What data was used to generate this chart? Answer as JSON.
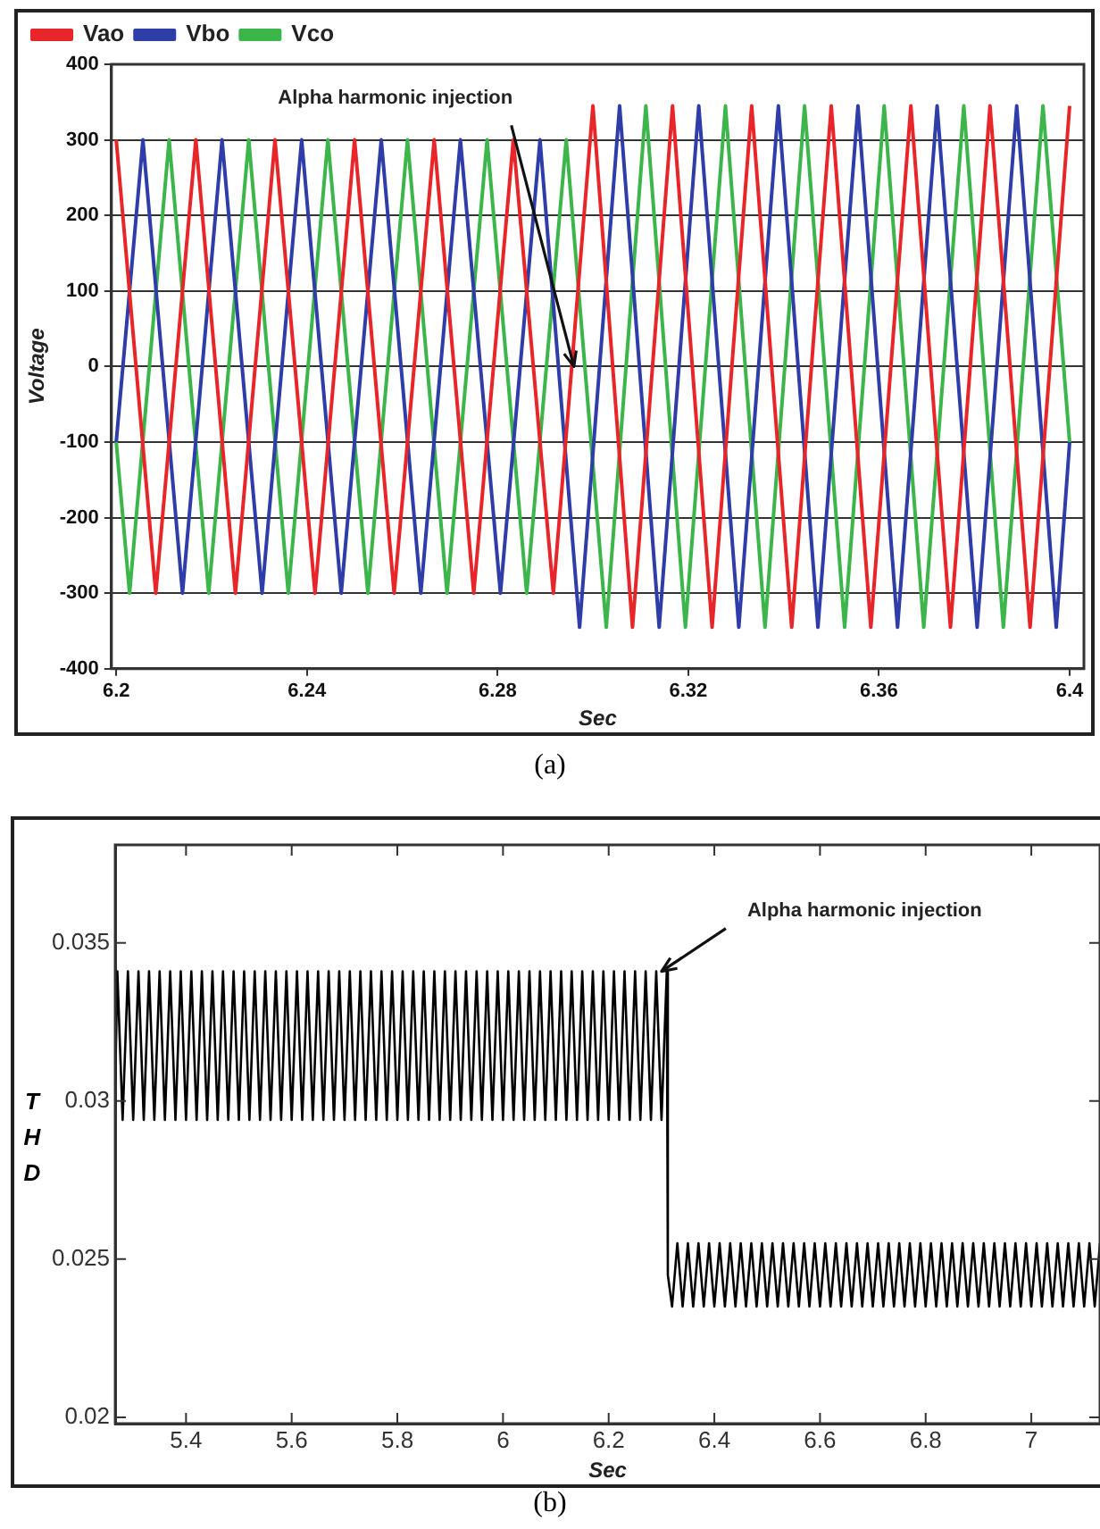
{
  "chart_data": [
    {
      "type": "line",
      "xlabel": "Sec",
      "ylabel": "Voltage",
      "xlim": [
        6.199,
        6.403
      ],
      "xticks": [
        6.2,
        6.24,
        6.28,
        6.32,
        6.36,
        6.4
      ],
      "ylim": [
        -400,
        400
      ],
      "yticks": [
        -400,
        -300,
        -200,
        -100,
        0,
        100,
        200,
        300,
        400
      ],
      "grid": "y",
      "legend": "top left",
      "annotations": [
        {
          "text": "Alpha harmonic injection",
          "x": 6.296,
          "y": 0
        },
        "(a)"
      ],
      "series": [
        {
          "name": "Vao",
          "color": "#e8262a",
          "x": [
            6.2,
            6.2083,
            6.2167,
            6.225,
            6.2333,
            6.2417,
            6.25,
            6.2583,
            6.2667,
            6.275,
            6.2833,
            6.2917,
            6.3,
            6.3083,
            6.3167,
            6.325,
            6.3333,
            6.3417,
            6.35,
            6.3583,
            6.3667,
            6.375,
            6.3833,
            6.3917,
            6.4
          ],
          "values": [
            300,
            -300,
            300,
            -300,
            300,
            -300,
            300,
            -300,
            300,
            -300,
            300,
            -300,
            345,
            -345,
            345,
            -345,
            345,
            -345,
            345,
            -345,
            345,
            -345,
            345,
            -345,
            345
          ]
        },
        {
          "name": "Vbo",
          "color": "#2e3da8",
          "x": [
            6.2,
            6.2056,
            6.2139,
            6.2222,
            6.2306,
            6.2389,
            6.2472,
            6.2556,
            6.2639,
            6.2722,
            6.2806,
            6.2889,
            6.2972,
            6.3056,
            6.3139,
            6.3222,
            6.3306,
            6.3389,
            6.3472,
            6.3556,
            6.3639,
            6.3722,
            6.3806,
            6.3889,
            6.3972,
            6.4
          ],
          "values": [
            -100,
            300,
            -300,
            300,
            -300,
            300,
            -300,
            300,
            -300,
            300,
            -300,
            300,
            -345,
            345,
            -345,
            345,
            -345,
            345,
            -345,
            345,
            -345,
            345,
            -345,
            345,
            -345,
            -100
          ]
        },
        {
          "name": "Vco",
          "color": "#3cb54a",
          "x": [
            6.2,
            6.2028,
            6.2111,
            6.2194,
            6.2278,
            6.2361,
            6.2444,
            6.2528,
            6.2611,
            6.2694,
            6.2778,
            6.2861,
            6.2944,
            6.3028,
            6.3111,
            6.3194,
            6.3278,
            6.3361,
            6.3444,
            6.3528,
            6.3611,
            6.3694,
            6.3778,
            6.3861,
            6.3944,
            6.4
          ],
          "values": [
            -100,
            -300,
            300,
            -300,
            300,
            -300,
            300,
            -300,
            300,
            -300,
            300,
            -300,
            300,
            -345,
            345,
            -345,
            345,
            -345,
            345,
            -345,
            345,
            -345,
            345,
            -345,
            345,
            -100
          ]
        }
      ]
    },
    {
      "type": "line",
      "xlabel": "Sec",
      "ylabel": "THD",
      "xlim": [
        5.266,
        7.13
      ],
      "xticks": [
        5.4,
        5.6,
        5.8,
        6,
        6.2,
        6.4,
        6.6,
        6.8,
        7
      ],
      "ylim": [
        0.0198,
        0.0381
      ],
      "yticks": [
        0.02,
        0.025,
        0.03,
        0.035
      ],
      "grid": false,
      "legend": false,
      "annotations": [
        {
          "text": "Alpha harmonic injection",
          "x": 6.3,
          "y": 0.0341
        },
        "(b)"
      ],
      "series": [
        {
          "color": "#000000",
          "x": [
            5.266,
            5.27,
            5.28,
            5.29,
            5.3,
            5.31,
            5.32,
            5.33,
            5.34,
            5.35,
            5.36,
            5.37,
            5.38,
            5.39,
            5.4,
            5.41,
            5.42,
            5.43,
            5.44,
            5.45,
            5.46,
            5.47,
            5.48,
            5.49,
            5.5,
            5.51,
            5.52,
            5.53,
            5.54,
            5.55,
            5.56,
            5.57,
            5.58,
            5.59,
            5.6,
            5.61,
            5.62,
            5.63,
            5.64,
            5.65,
            5.66,
            5.67,
            5.68,
            5.69,
            5.7,
            5.71,
            5.72,
            5.73,
            5.74,
            5.75,
            5.76,
            5.77,
            5.78,
            5.79,
            5.8,
            5.81,
            5.82,
            5.83,
            5.84,
            5.85,
            5.86,
            5.87,
            5.88,
            5.89,
            5.9,
            5.91,
            5.92,
            5.93,
            5.94,
            5.95,
            5.96,
            5.97,
            5.98,
            5.99,
            6,
            6.01,
            6.02,
            6.03,
            6.04,
            6.05,
            6.06,
            6.07,
            6.08,
            6.09,
            6.1,
            6.11,
            6.12,
            6.13,
            6.14,
            6.15,
            6.16,
            6.17,
            6.18,
            6.19,
            6.2,
            6.21,
            6.22,
            6.23,
            6.24,
            6.25,
            6.26,
            6.27,
            6.28,
            6.29,
            6.3,
            6.31,
            6.312,
            6.32,
            6.33,
            6.34,
            6.35,
            6.36,
            6.37,
            6.38,
            6.39,
            6.4,
            6.41,
            6.42,
            6.43,
            6.44,
            6.45,
            6.46,
            6.47,
            6.48,
            6.49,
            6.5,
            6.51,
            6.52,
            6.53,
            6.54,
            6.55,
            6.56,
            6.57,
            6.58,
            6.59,
            6.6,
            6.61,
            6.62,
            6.63,
            6.64,
            6.65,
            6.66,
            6.67,
            6.68,
            6.69,
            6.7,
            6.71,
            6.72,
            6.73,
            6.74,
            6.75,
            6.76,
            6.77,
            6.78,
            6.79,
            6.8,
            6.81,
            6.82,
            6.83,
            6.84,
            6.85,
            6.86,
            6.87,
            6.88,
            6.89,
            6.9,
            6.91,
            6.92,
            6.93,
            6.94,
            6.95,
            6.96,
            6.97,
            6.98,
            6.99,
            7,
            7.01,
            7.02,
            7.03,
            7.04,
            7.05,
            7.06,
            7.07,
            7.08,
            7.09,
            7.1,
            7.11,
            7.12,
            7.13
          ],
          "values": [
            0.0305,
            0.0341,
            0.0294,
            0.0341,
            0.0294,
            0.0341,
            0.0294,
            0.0341,
            0.0294,
            0.0341,
            0.0294,
            0.0341,
            0.0294,
            0.0341,
            0.0294,
            0.0341,
            0.0294,
            0.0341,
            0.0294,
            0.0341,
            0.0294,
            0.0341,
            0.0294,
            0.0341,
            0.0294,
            0.0341,
            0.0294,
            0.0341,
            0.0294,
            0.0341,
            0.0294,
            0.0341,
            0.0294,
            0.0341,
            0.0294,
            0.0341,
            0.0294,
            0.0341,
            0.0294,
            0.0341,
            0.0294,
            0.0341,
            0.0294,
            0.0341,
            0.0294,
            0.0341,
            0.0294,
            0.0341,
            0.0294,
            0.0341,
            0.0294,
            0.0341,
            0.0294,
            0.0341,
            0.0294,
            0.0341,
            0.0294,
            0.0341,
            0.0294,
            0.0341,
            0.0294,
            0.0341,
            0.0294,
            0.0341,
            0.0294,
            0.0341,
            0.0294,
            0.0341,
            0.0294,
            0.0341,
            0.0294,
            0.0341,
            0.0294,
            0.0341,
            0.0294,
            0.0341,
            0.0294,
            0.0341,
            0.0294,
            0.0341,
            0.0294,
            0.0341,
            0.0294,
            0.0341,
            0.0294,
            0.0341,
            0.0294,
            0.0341,
            0.0294,
            0.0341,
            0.0294,
            0.0341,
            0.0294,
            0.0341,
            0.0294,
            0.0341,
            0.0294,
            0.0341,
            0.0294,
            0.0341,
            0.0294,
            0.0341,
            0.0294,
            0.0341,
            0.0294,
            0.0341,
            0.0245,
            0.0235,
            0.0255,
            0.0235,
            0.0255,
            0.0235,
            0.0255,
            0.0235,
            0.0255,
            0.0235,
            0.0255,
            0.0235,
            0.0255,
            0.0235,
            0.0255,
            0.0235,
            0.0255,
            0.0235,
            0.0255,
            0.0235,
            0.0255,
            0.0235,
            0.0255,
            0.0235,
            0.0255,
            0.0235,
            0.0255,
            0.0235,
            0.0255,
            0.0235,
            0.0255,
            0.0235,
            0.0255,
            0.0235,
            0.0255,
            0.0235,
            0.0255,
            0.0235,
            0.0255,
            0.0235,
            0.0255,
            0.0235,
            0.0255,
            0.0235,
            0.0255,
            0.0235,
            0.0255,
            0.0235,
            0.0255,
            0.0235,
            0.0255,
            0.0235,
            0.0255,
            0.0235,
            0.0255,
            0.0235,
            0.0255,
            0.0235,
            0.0255,
            0.0235,
            0.0255,
            0.0235,
            0.0255,
            0.0235,
            0.0255,
            0.0235,
            0.0255,
            0.0235,
            0.0255,
            0.0235,
            0.0255,
            0.0235,
            0.0255,
            0.0235,
            0.0255,
            0.0235,
            0.0255,
            0.0235,
            0.0255,
            0.0235,
            0.0255,
            0.0235,
            0.0255
          ]
        }
      ]
    }
  ]
}
